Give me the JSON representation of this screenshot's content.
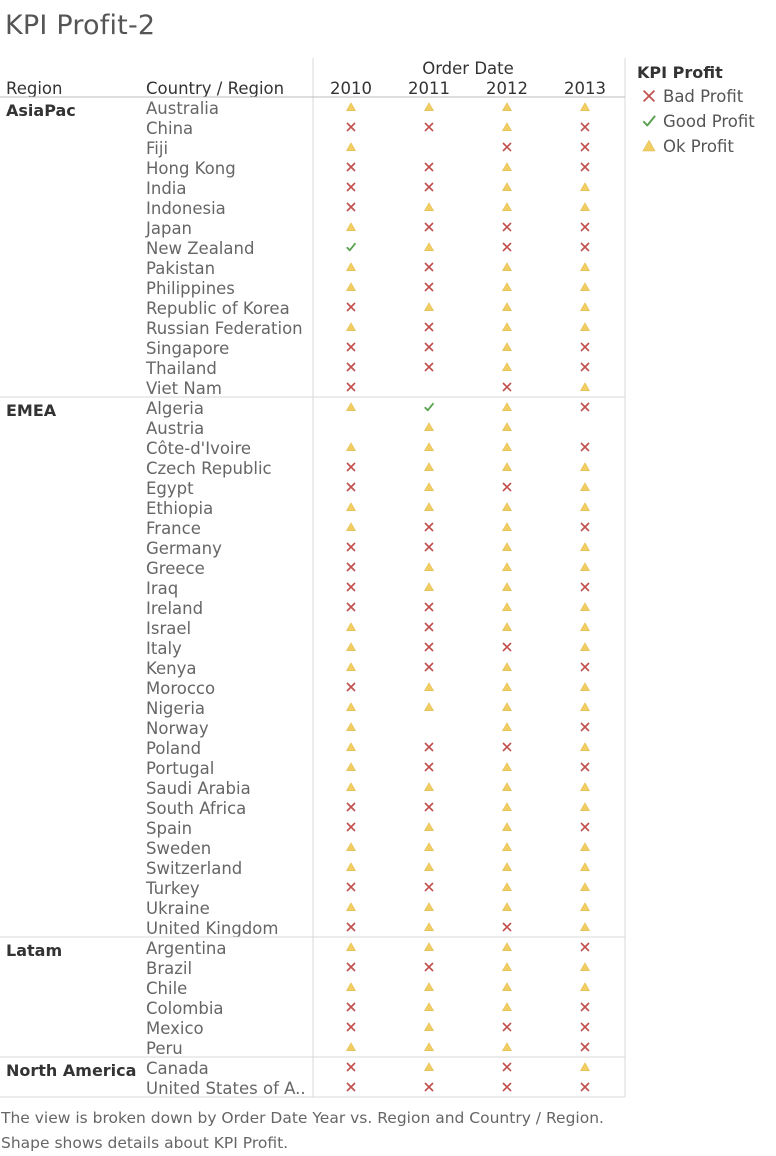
{
  "title": "KPI Profit-2",
  "caption": "The view is broken down by Order Date Year vs. Region and Country / Region.  Shape shows details about KPI Profit.",
  "colors": {
    "bad": "#c0504d",
    "good": "#59a14f",
    "ok": "#f1ce63",
    "line": "#d9d9d9"
  },
  "chart_data": {
    "type": "table",
    "column_group_label": "Order Date",
    "row_headers": [
      "Region",
      "Country / Region"
    ],
    "years": [
      "2010",
      "2011",
      "2012",
      "2013"
    ],
    "legend": {
      "title": "KPI Profit",
      "items": [
        {
          "code": "B",
          "label": "Bad Profit",
          "icon": "cross-icon"
        },
        {
          "code": "G",
          "label": "Good Profit",
          "icon": "check-icon"
        },
        {
          "code": "O",
          "label": "Ok Profit",
          "icon": "triangle-icon"
        }
      ]
    },
    "regions": [
      {
        "name": "AsiaPac",
        "countries": [
          {
            "name": "Australia",
            "kpi": [
              "O",
              "O",
              "O",
              "O"
            ]
          },
          {
            "name": "China",
            "kpi": [
              "B",
              "B",
              "O",
              "B"
            ]
          },
          {
            "name": "Fiji",
            "kpi": [
              "O",
              "",
              "B",
              "B"
            ]
          },
          {
            "name": "Hong Kong",
            "kpi": [
              "B",
              "B",
              "O",
              "B"
            ]
          },
          {
            "name": "India",
            "kpi": [
              "B",
              "B",
              "O",
              "O"
            ]
          },
          {
            "name": "Indonesia",
            "kpi": [
              "B",
              "O",
              "O",
              "O"
            ]
          },
          {
            "name": "Japan",
            "kpi": [
              "O",
              "B",
              "B",
              "B"
            ]
          },
          {
            "name": "New Zealand",
            "kpi": [
              "G",
              "O",
              "B",
              "B"
            ]
          },
          {
            "name": "Pakistan",
            "kpi": [
              "O",
              "B",
              "O",
              "O"
            ]
          },
          {
            "name": "Philippines",
            "kpi": [
              "O",
              "B",
              "O",
              "O"
            ]
          },
          {
            "name": "Republic of Korea",
            "kpi": [
              "B",
              "O",
              "O",
              "O"
            ]
          },
          {
            "name": "Russian Federation",
            "kpi": [
              "O",
              "B",
              "O",
              "O"
            ]
          },
          {
            "name": "Singapore",
            "kpi": [
              "B",
              "B",
              "O",
              "B"
            ]
          },
          {
            "name": "Thailand",
            "kpi": [
              "B",
              "B",
              "O",
              "B"
            ]
          },
          {
            "name": "Viet Nam",
            "kpi": [
              "B",
              "",
              "B",
              "O"
            ]
          }
        ]
      },
      {
        "name": "EMEA",
        "countries": [
          {
            "name": "Algeria",
            "kpi": [
              "O",
              "G",
              "O",
              "B"
            ]
          },
          {
            "name": "Austria",
            "kpi": [
              "",
              "O",
              "O",
              ""
            ]
          },
          {
            "name": "Côte-d'Ivoire",
            "kpi": [
              "O",
              "O",
              "O",
              "B"
            ]
          },
          {
            "name": "Czech Republic",
            "kpi": [
              "B",
              "O",
              "O",
              "O"
            ]
          },
          {
            "name": "Egypt",
            "kpi": [
              "B",
              "O",
              "B",
              "O"
            ]
          },
          {
            "name": "Ethiopia",
            "kpi": [
              "O",
              "O",
              "O",
              "O"
            ]
          },
          {
            "name": "France",
            "kpi": [
              "O",
              "B",
              "O",
              "B"
            ]
          },
          {
            "name": "Germany",
            "kpi": [
              "B",
              "B",
              "O",
              "O"
            ]
          },
          {
            "name": "Greece",
            "kpi": [
              "B",
              "O",
              "O",
              "O"
            ]
          },
          {
            "name": "Iraq",
            "kpi": [
              "B",
              "O",
              "O",
              "B"
            ]
          },
          {
            "name": "Ireland",
            "kpi": [
              "B",
              "B",
              "O",
              "O"
            ]
          },
          {
            "name": "Israel",
            "kpi": [
              "O",
              "B",
              "O",
              "O"
            ]
          },
          {
            "name": "Italy",
            "kpi": [
              "O",
              "B",
              "B",
              "O"
            ]
          },
          {
            "name": "Kenya",
            "kpi": [
              "O",
              "B",
              "O",
              "B"
            ]
          },
          {
            "name": "Morocco",
            "kpi": [
              "B",
              "O",
              "O",
              "O"
            ]
          },
          {
            "name": "Nigeria",
            "kpi": [
              "O",
              "O",
              "O",
              "O"
            ]
          },
          {
            "name": "Norway",
            "kpi": [
              "O",
              "",
              "O",
              "B"
            ]
          },
          {
            "name": "Poland",
            "kpi": [
              "O",
              "B",
              "B",
              "O"
            ]
          },
          {
            "name": "Portugal",
            "kpi": [
              "O",
              "B",
              "O",
              "B"
            ]
          },
          {
            "name": "Saudi Arabia",
            "kpi": [
              "O",
              "O",
              "O",
              "O"
            ]
          },
          {
            "name": "South Africa",
            "kpi": [
              "B",
              "B",
              "O",
              "O"
            ]
          },
          {
            "name": "Spain",
            "kpi": [
              "B",
              "O",
              "O",
              "B"
            ]
          },
          {
            "name": "Sweden",
            "kpi": [
              "O",
              "O",
              "O",
              "O"
            ]
          },
          {
            "name": "Switzerland",
            "kpi": [
              "O",
              "O",
              "O",
              "O"
            ]
          },
          {
            "name": "Turkey",
            "kpi": [
              "B",
              "B",
              "O",
              "O"
            ]
          },
          {
            "name": "Ukraine",
            "kpi": [
              "O",
              "O",
              "O",
              "O"
            ]
          },
          {
            "name": "United Kingdom",
            "kpi": [
              "B",
              "O",
              "B",
              "O"
            ]
          }
        ]
      },
      {
        "name": "Latam",
        "countries": [
          {
            "name": "Argentina",
            "kpi": [
              "O",
              "O",
              "O",
              "B"
            ]
          },
          {
            "name": "Brazil",
            "kpi": [
              "B",
              "B",
              "O",
              "O"
            ]
          },
          {
            "name": "Chile",
            "kpi": [
              "O",
              "O",
              "O",
              "O"
            ]
          },
          {
            "name": "Colombia",
            "kpi": [
              "B",
              "O",
              "O",
              "B"
            ]
          },
          {
            "name": "Mexico",
            "kpi": [
              "B",
              "O",
              "B",
              "B"
            ]
          },
          {
            "name": "Peru",
            "kpi": [
              "O",
              "O",
              "O",
              "B"
            ]
          }
        ]
      },
      {
        "name": "North America",
        "countries": [
          {
            "name": "Canada",
            "kpi": [
              "B",
              "O",
              "B",
              "O"
            ]
          },
          {
            "name": "United States of A..",
            "kpi": [
              "B",
              "B",
              "B",
              "B"
            ]
          }
        ]
      }
    ]
  }
}
